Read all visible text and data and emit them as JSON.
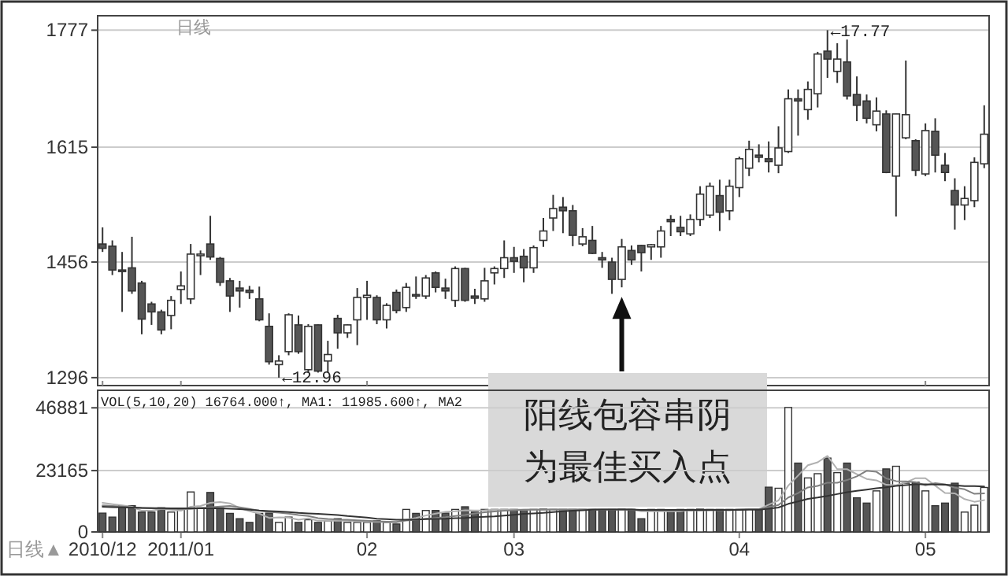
{
  "chart_data": [
    {
      "type": "candlestick",
      "title": "日线",
      "tick_labels": "y",
      "grid": "y",
      "ylim": [
        1285,
        1797
      ],
      "yticks": [
        1296,
        1456,
        1615,
        1777
      ],
      "categories": [
        "2010/12",
        null,
        null,
        null,
        null,
        null,
        null,
        null,
        "2011/01",
        null,
        null,
        null,
        null,
        null,
        null,
        null,
        null,
        null,
        null,
        null,
        null,
        null,
        null,
        null,
        null,
        null,
        null,
        "02",
        null,
        null,
        null,
        null,
        null,
        null,
        null,
        null,
        null,
        null,
        null,
        null,
        null,
        null,
        "03",
        null,
        null,
        null,
        null,
        null,
        null,
        null,
        null,
        null,
        null,
        null,
        null,
        null,
        null,
        null,
        null,
        null,
        null,
        null,
        null,
        null,
        null,
        "04",
        null,
        null,
        null,
        null,
        null,
        null,
        null,
        null,
        null,
        null,
        null,
        null,
        null,
        null,
        null,
        null,
        null,
        null,
        "05",
        null,
        null,
        null,
        null,
        null,
        null
      ],
      "ohlc": [
        [
          1481,
          1504,
          1470,
          1475
        ],
        [
          1478,
          1486,
          1438,
          1445
        ],
        [
          1445,
          1470,
          1387,
          1443
        ],
        [
          1448,
          1491,
          1412,
          1416
        ],
        [
          1427,
          1430,
          1356,
          1377
        ],
        [
          1398,
          1401,
          1369,
          1387
        ],
        [
          1387,
          1390,
          1356,
          1362
        ],
        [
          1382,
          1409,
          1363,
          1403
        ],
        [
          1418,
          1443,
          1398,
          1423
        ],
        [
          1405,
          1481,
          1398,
          1467
        ],
        [
          1465,
          1472,
          1438,
          1467
        ],
        [
          1481,
          1520,
          1459,
          1463
        ],
        [
          1461,
          1463,
          1423,
          1428
        ],
        [
          1430,
          1434,
          1387,
          1409
        ],
        [
          1420,
          1430,
          1393,
          1416
        ],
        [
          1417,
          1423,
          1405,
          1414
        ],
        [
          1405,
          1422,
          1374,
          1376
        ],
        [
          1367,
          1385,
          1314,
          1318
        ],
        [
          1314,
          1327,
          1296,
          1319
        ],
        [
          1332,
          1385,
          1327,
          1383
        ],
        [
          1369,
          1382,
          1329,
          1332
        ],
        [
          1307,
          1370,
          1303,
          1367
        ],
        [
          1369,
          1370,
          1303,
          1305
        ],
        [
          1319,
          1347,
          1303,
          1328
        ],
        [
          1378,
          1383,
          1336,
          1358
        ],
        [
          1358,
          1370,
          1351,
          1369
        ],
        [
          1376,
          1420,
          1341,
          1407
        ],
        [
          1407,
          1430,
          1376,
          1410
        ],
        [
          1407,
          1410,
          1370,
          1376
        ],
        [
          1376,
          1399,
          1364,
          1396
        ],
        [
          1414,
          1418,
          1385,
          1389
        ],
        [
          1393,
          1427,
          1387,
          1421
        ],
        [
          1411,
          1436,
          1405,
          1409
        ],
        [
          1409,
          1438,
          1405,
          1434
        ],
        [
          1441,
          1443,
          1414,
          1421
        ],
        [
          1420,
          1433,
          1405,
          1416
        ],
        [
          1403,
          1450,
          1394,
          1447
        ],
        [
          1447,
          1448,
          1401,
          1403
        ],
        [
          1409,
          1419,
          1398,
          1406
        ],
        [
          1405,
          1448,
          1401,
          1430
        ],
        [
          1441,
          1450,
          1425,
          1447
        ],
        [
          1447,
          1486,
          1434,
          1462
        ],
        [
          1462,
          1477,
          1441,
          1457
        ],
        [
          1464,
          1474,
          1428,
          1448
        ],
        [
          1448,
          1479,
          1441,
          1476
        ],
        [
          1486,
          1517,
          1477,
          1499
        ],
        [
          1517,
          1549,
          1499,
          1530
        ],
        [
          1532,
          1546,
          1496,
          1527
        ],
        [
          1527,
          1535,
          1478,
          1493
        ],
        [
          1481,
          1503,
          1478,
          1491
        ],
        [
          1486,
          1506,
          1467,
          1468
        ],
        [
          1462,
          1470,
          1448,
          1459
        ],
        [
          1456,
          1462,
          1412,
          1432
        ],
        [
          1432,
          1488,
          1421,
          1477
        ],
        [
          1472,
          1479,
          1452,
          1459
        ],
        [
          1479,
          1480,
          1443,
          1469
        ],
        [
          1477,
          1481,
          1459,
          1480
        ],
        [
          1477,
          1506,
          1462,
          1499
        ],
        [
          1515,
          1521,
          1492,
          1512
        ],
        [
          1504,
          1520,
          1492,
          1498
        ],
        [
          1495,
          1522,
          1492,
          1515
        ],
        [
          1515,
          1561,
          1506,
          1550
        ],
        [
          1521,
          1566,
          1517,
          1561
        ],
        [
          1548,
          1570,
          1499,
          1525
        ],
        [
          1527,
          1570,
          1514,
          1561
        ],
        [
          1559,
          1602,
          1546,
          1599
        ],
        [
          1586,
          1624,
          1575,
          1612
        ],
        [
          1604,
          1619,
          1594,
          1601
        ],
        [
          1599,
          1623,
          1580,
          1595
        ],
        [
          1590,
          1644,
          1579,
          1614
        ],
        [
          1609,
          1695,
          1607,
          1682
        ],
        [
          1682,
          1695,
          1631,
          1679
        ],
        [
          1667,
          1706,
          1653,
          1695
        ],
        [
          1689,
          1747,
          1670,
          1744
        ],
        [
          1748,
          1777,
          1711,
          1737
        ],
        [
          1720,
          1759,
          1704,
          1737
        ],
        [
          1733,
          1764,
          1681,
          1686
        ],
        [
          1688,
          1713,
          1651,
          1673
        ],
        [
          1679,
          1688,
          1648,
          1655
        ],
        [
          1646,
          1684,
          1637,
          1665
        ],
        [
          1661,
          1666,
          1579,
          1580
        ],
        [
          1575,
          1662,
          1519,
          1661
        ],
        [
          1628,
          1735,
          1626,
          1660
        ],
        [
          1624,
          1626,
          1575,
          1583
        ],
        [
          1578,
          1648,
          1575,
          1638
        ],
        [
          1637,
          1655,
          1580,
          1604
        ],
        [
          1590,
          1607,
          1568,
          1580
        ],
        [
          1555,
          1572,
          1501,
          1535
        ],
        [
          1535,
          1561,
          1514,
          1544
        ],
        [
          1541,
          1601,
          1532,
          1594
        ],
        [
          1592,
          1673,
          1586,
          1633
        ]
      ],
      "annotations": [
        "阳线包容串阴为最佳买入点",
        "←17.77",
        "←12.96"
      ]
    },
    {
      "type": "bar",
      "title": "VOL(5,10,20) 16764.000↑, MA1: 11985.600↑, MA2",
      "grid": "y",
      "ylim": [
        0,
        53500
      ],
      "yticks": [
        0,
        23165,
        46881
      ],
      "categories": [
        "2010/12",
        null,
        null,
        null,
        null,
        null,
        null,
        null,
        "2011/01",
        null,
        null,
        null,
        null,
        null,
        null,
        null,
        null,
        null,
        null,
        null,
        null,
        null,
        null,
        null,
        null,
        null,
        null,
        "02",
        null,
        null,
        null,
        null,
        null,
        null,
        null,
        null,
        null,
        null,
        null,
        null,
        null,
        null,
        "03",
        null,
        null,
        null,
        null,
        null,
        null,
        null,
        null,
        null,
        null,
        null,
        null,
        null,
        null,
        null,
        null,
        null,
        null,
        null,
        null,
        null,
        null,
        "04",
        null,
        null,
        null,
        null,
        null,
        null,
        null,
        null,
        null,
        null,
        null,
        null,
        null,
        null,
        null,
        null,
        null,
        null,
        "05",
        null,
        null,
        null,
        null,
        null,
        null
      ],
      "series": [
        {
          "type": "bar",
          "values": [
            7100,
            5600,
            9900,
            9900,
            7500,
            7500,
            9100,
            7500,
            8500,
            15100,
            9100,
            14900,
            9100,
            7000,
            5000,
            3600,
            7000,
            7100,
            3600,
            5600,
            3600,
            4600,
            3600,
            4200,
            5000,
            3600,
            3600,
            3600,
            4200,
            3600,
            3000,
            8500,
            7000,
            8100,
            8100,
            7100,
            8500,
            9500,
            7500,
            8500,
            8500,
            8500,
            8500,
            8300,
            8500,
            8700,
            8500,
            8500,
            8500,
            8500,
            8500,
            8300,
            8500,
            8700,
            8500,
            5000,
            8500,
            8500,
            8300,
            8500,
            8500,
            8700,
            8500,
            8500,
            8500,
            8500,
            8700,
            8700,
            16900,
            16500,
            47000,
            26000,
            20400,
            22000,
            27900,
            22400,
            26000,
            12900,
            10900,
            15500,
            23800,
            24800,
            18400,
            18800,
            15500,
            9900,
            10900,
            18400,
            7500,
            10100,
            16800
          ],
          "colors": [
            "#555555",
            "#555555",
            "#555555",
            "#555555",
            "#555555",
            "#555555",
            "#555555",
            "#ffffff",
            "#ffffff",
            "#ffffff",
            "#ffffff",
            "#555555",
            "#555555",
            "#555555",
            "#555555",
            "#555555",
            "#555555",
            "#555555",
            "#ffffff",
            "#ffffff",
            "#555555",
            "#ffffff",
            "#555555",
            "#ffffff",
            "#555555",
            "#ffffff",
            "#ffffff",
            "#ffffff",
            "#555555",
            "#ffffff",
            "#555555",
            "#ffffff",
            "#555555",
            "#ffffff",
            "#555555",
            "#555555",
            "#ffffff",
            "#555555",
            "#555555",
            "#ffffff",
            "#ffffff",
            "#ffffff",
            "#555555",
            "#555555",
            "#ffffff",
            "#ffffff",
            "#ffffff",
            "#555555",
            "#555555",
            "#ffffff",
            "#555555",
            "#555555",
            "#555555",
            "#ffffff",
            "#555555",
            "#555555",
            "#ffffff",
            "#ffffff",
            "#555555",
            "#555555",
            "#ffffff",
            "#ffffff",
            "#ffffff",
            "#555555",
            "#ffffff",
            "#ffffff",
            "#ffffff",
            "#555555",
            "#555555",
            "#ffffff",
            "#ffffff",
            "#555555",
            "#ffffff",
            "#ffffff",
            "#555555",
            "#ffffff",
            "#555555",
            "#555555",
            "#555555",
            "#ffffff",
            "#555555",
            "#ffffff",
            "#ffffff",
            "#555555",
            "#ffffff",
            "#555555",
            "#555555",
            "#555555",
            "#ffffff",
            "#ffffff",
            "#ffffff"
          ]
        },
        {
          "type": "line",
          "color": "#b0b0b0",
          "values": [
            11000,
            10500,
            10000,
            9500,
            8000,
            8000,
            8700,
            8400,
            8000,
            9500,
            9800,
            11000,
            11300,
            10800,
            9000,
            7900,
            6900,
            5300,
            5500,
            5400,
            4600,
            5100,
            4200,
            4300,
            4200,
            4200,
            4000,
            3900,
            3800,
            3700,
            3600,
            4600,
            5300,
            6200,
            6900,
            7600,
            7800,
            8200,
            8100,
            8200,
            8400,
            8500,
            8500,
            8400,
            8500,
            8500,
            8500,
            8500,
            8500,
            8500,
            8500,
            8500,
            8500,
            8500,
            8500,
            7800,
            7800,
            7800,
            7800,
            7800,
            8400,
            8500,
            8500,
            8500,
            8500,
            8500,
            8600,
            8600,
            10300,
            11900,
            17500,
            21300,
            25200,
            26300,
            28700,
            23700,
            23700,
            21800,
            20000,
            19500,
            17800,
            17600,
            18700,
            20300,
            20300,
            17500,
            14700,
            14600,
            12400,
            11400,
            12000
          ]
        },
        {
          "type": "line",
          "color": "#808080",
          "values": [
            10000,
            9800,
            9600,
            9300,
            9100,
            9000,
            8800,
            8700,
            8600,
            8700,
            9000,
            9300,
            9600,
            9800,
            9300,
            8700,
            8000,
            7600,
            7300,
            6900,
            6400,
            6000,
            5200,
            4900,
            4700,
            4600,
            4400,
            4200,
            4000,
            3900,
            3800,
            4300,
            4600,
            5000,
            5300,
            5600,
            6000,
            6400,
            7000,
            7400,
            7700,
            8000,
            8200,
            8400,
            8400,
            8400,
            8500,
            8500,
            8500,
            8500,
            8500,
            8500,
            8500,
            8500,
            8500,
            8200,
            8200,
            8200,
            8200,
            8200,
            8100,
            8100,
            8200,
            8200,
            8200,
            8500,
            8600,
            8600,
            9400,
            10200,
            13000,
            14700,
            16800,
            17400,
            18600,
            18600,
            19600,
            21000,
            23100,
            22700,
            20200,
            19200,
            19100,
            18800,
            17600,
            18400,
            18000,
            16700,
            16100,
            14400,
            14600
          ]
        },
        {
          "type": "line",
          "color": "#333333",
          "values": [
            9500,
            9400,
            9300,
            9200,
            9100,
            9000,
            9000,
            8900,
            8900,
            8900,
            8900,
            8900,
            8900,
            8800,
            8600,
            8400,
            8100,
            7900,
            7700,
            7500,
            7200,
            7000,
            6800,
            6600,
            6400,
            6000,
            5700,
            5400,
            5000,
            4800,
            4600,
            4600,
            4700,
            4800,
            4900,
            5000,
            5200,
            5300,
            5600,
            5700,
            5900,
            6200,
            6500,
            6800,
            7000,
            7200,
            7500,
            7800,
            8000,
            8200,
            8400,
            8500,
            8500,
            8500,
            8500,
            8300,
            8300,
            8300,
            8300,
            8300,
            8300,
            8300,
            8300,
            8300,
            8300,
            8300,
            8400,
            8400,
            8800,
            9200,
            10600,
            11500,
            12500,
            13000,
            13600,
            14300,
            15000,
            15500,
            16000,
            16500,
            16900,
            17400,
            17700,
            18000,
            18000,
            17900,
            17800,
            17600,
            17300,
            17300,
            17200
          ]
        }
      ],
      "annotations": [
        "日线▲"
      ]
    }
  ]
}
